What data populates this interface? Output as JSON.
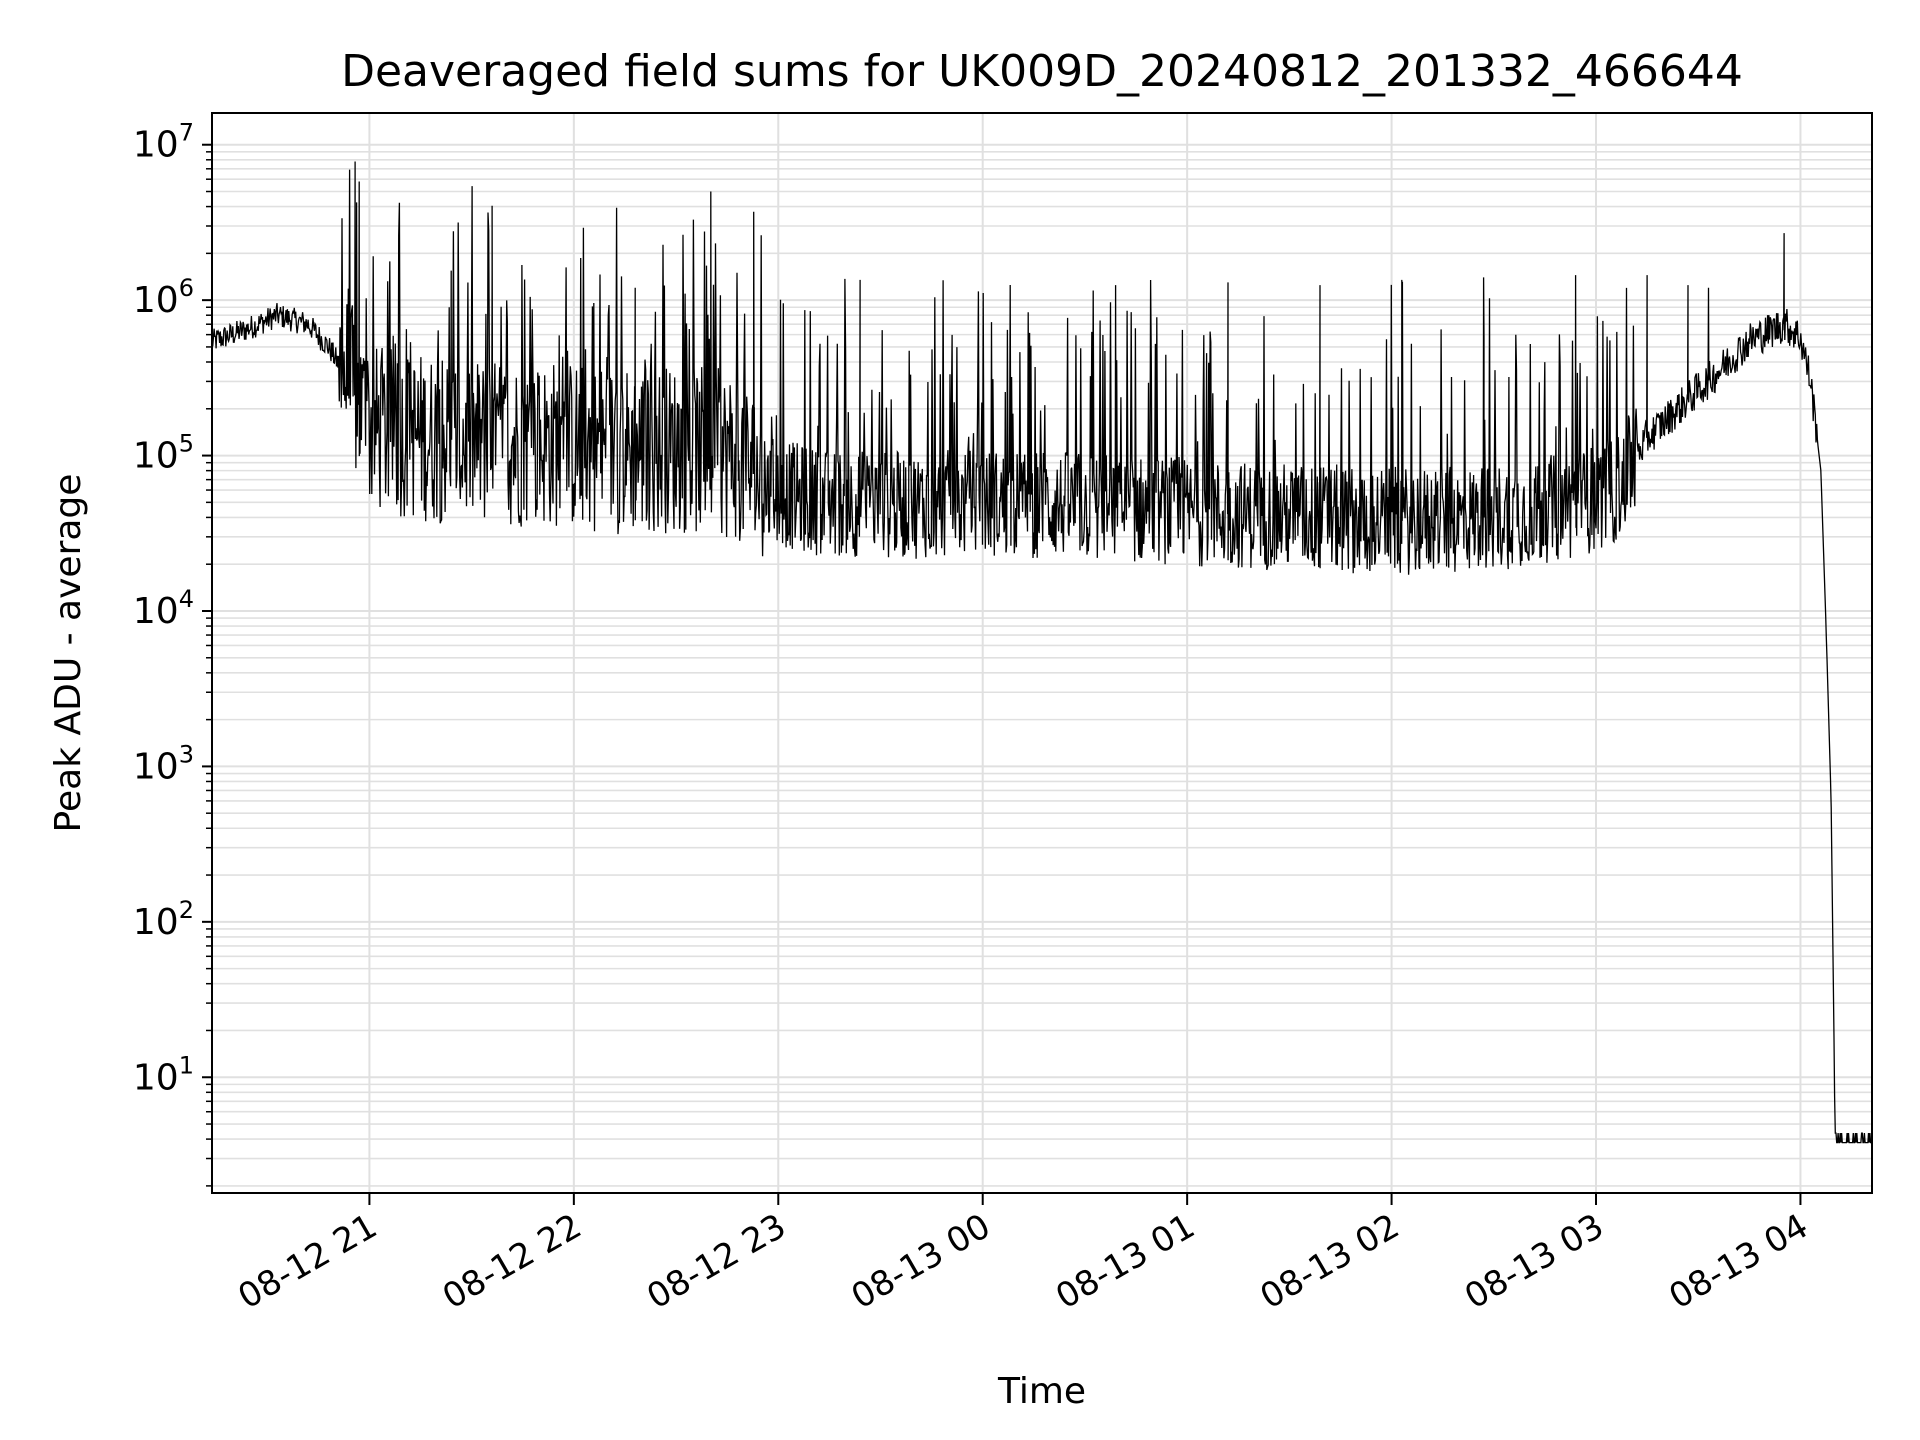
{
  "chart_data": {
    "type": "line",
    "title": "Deaveraged field sums for UK009D_20240812_201332_466644",
    "xlabel": "Time",
    "ylabel": "Peak ADU - average",
    "yscale": "log",
    "ylim": [
      1.8,
      16000000
    ],
    "xlim_hours": [
      20.23,
      28.35
    ],
    "grid": true,
    "line_color": "#000000",
    "grid_color": "#e0e0e0",
    "xticks": [
      {
        "hour": 21,
        "label": "08-12 21"
      },
      {
        "hour": 22,
        "label": "08-12 22"
      },
      {
        "hour": 23,
        "label": "08-12 23"
      },
      {
        "hour": 24,
        "label": "08-13 00"
      },
      {
        "hour": 25,
        "label": "08-13 01"
      },
      {
        "hour": 26,
        "label": "08-13 02"
      },
      {
        "hour": 27,
        "label": "08-13 03"
      },
      {
        "hour": 28,
        "label": "08-13 04"
      }
    ],
    "yticks": [
      {
        "value": 10,
        "base": "10",
        "exp": "1"
      },
      {
        "value": 100,
        "base": "10",
        "exp": "2"
      },
      {
        "value": 1000,
        "base": "10",
        "exp": "3"
      },
      {
        "value": 10000,
        "base": "10",
        "exp": "4"
      },
      {
        "value": 100000,
        "base": "10",
        "exp": "5"
      },
      {
        "value": 1000000,
        "base": "10",
        "exp": "6"
      },
      {
        "value": 10000000,
        "base": "10",
        "exp": "7"
      }
    ],
    "series": [
      {
        "name": "Peak ADU - average",
        "baseline": [
          [
            20.23,
            540000
          ],
          [
            20.4,
            650000
          ],
          [
            20.55,
            800000
          ],
          [
            20.7,
            700000
          ],
          [
            20.8,
            500000
          ],
          [
            20.9,
            300000
          ],
          [
            21.0,
            150000
          ],
          [
            21.3,
            130000
          ],
          [
            21.6,
            120000
          ],
          [
            21.9,
            120000
          ],
          [
            22.2,
            110000
          ],
          [
            22.5,
            110000
          ],
          [
            22.8,
            100000
          ],
          [
            22.95,
            60000
          ],
          [
            23.2,
            50000
          ],
          [
            23.6,
            48000
          ],
          [
            24.0,
            50000
          ],
          [
            24.4,
            48000
          ],
          [
            24.8,
            45000
          ],
          [
            25.2,
            42000
          ],
          [
            25.6,
            40000
          ],
          [
            26.0,
            38000
          ],
          [
            26.3,
            38000
          ],
          [
            26.6,
            42000
          ],
          [
            26.9,
            48000
          ],
          [
            27.1,
            60000
          ],
          [
            27.25,
            130000
          ],
          [
            27.4,
            200000
          ],
          [
            27.6,
            350000
          ],
          [
            27.75,
            550000
          ],
          [
            27.92,
            700000
          ],
          [
            28.0,
            580000
          ],
          [
            28.05,
            300000
          ],
          [
            28.1,
            80000
          ],
          [
            28.13,
            5000
          ],
          [
            28.15,
            600
          ],
          [
            28.17,
            3.8
          ],
          [
            28.35,
            3.8
          ]
        ],
        "spikes": [
          [
            20.93,
            7800000
          ],
          [
            20.95,
            5800000
          ],
          [
            22.67,
            5000000
          ],
          [
            22.88,
            3700000
          ],
          [
            27.92,
            2700000
          ],
          [
            21.6,
            1500000
          ],
          [
            21.4,
            1550000
          ],
          [
            22.3,
            1200000
          ],
          [
            23.4,
            1350000
          ],
          [
            24.65,
            1250000
          ],
          [
            25.2,
            1300000
          ],
          [
            25.65,
            1250000
          ],
          [
            26.05,
            1350000
          ],
          [
            26.45,
            1400000
          ],
          [
            26.9,
            1450000
          ],
          [
            27.25,
            1450000
          ],
          [
            27.45,
            1250000
          ],
          [
            27.55,
            1200000
          ]
        ]
      }
    ]
  }
}
